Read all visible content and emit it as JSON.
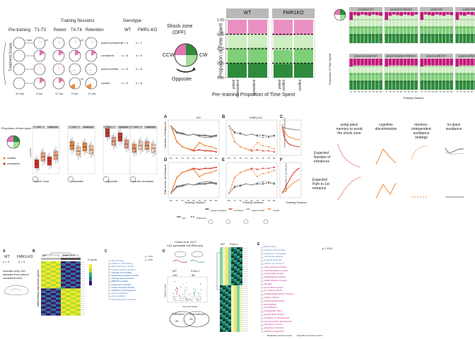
{
  "top_left": {
    "training_sessions": "Training Sessions",
    "genotype": "Genotype",
    "treatment_groups": "Treatment Groups",
    "stages": [
      "Pre-training",
      "T1-T3",
      "Retest",
      "T4-T6",
      "Retention"
    ],
    "genotype_cols": [
      "WT",
      "FMR1-KO"
    ],
    "groups": [
      {
        "name": "yoked-consistent",
        "wt": "n = 4",
        "ko": "n = 7"
      },
      {
        "name": "consistent",
        "wt": "n = 6",
        "ko": "n = 9"
      },
      {
        "name": "yoked-conflict",
        "wt": "n = 5",
        "ko": "n = 5"
      },
      {
        "name": "conflict",
        "wt": "n = 9",
        "ko": "n = 8"
      }
    ],
    "times": [
      "10 min",
      "2 hrs",
      "17 hrs",
      "2 hrs",
      "17 hrs"
    ],
    "small_labels": [
      "1 rpm",
      "x3",
      "x3",
      "x3"
    ]
  },
  "shock_zone": {
    "title": "Shock zone",
    "off": "(OFF)",
    "ccw": "CCW",
    "cw": "CW",
    "opposite": "Opposite"
  },
  "proportion_chart": {
    "panels": [
      "WT",
      "FMR1KO"
    ],
    "ylabel": "Proportion of Time Spent",
    "yticks": [
      "0.00",
      "0.25",
      "0.50",
      "0.75",
      "1.00"
    ],
    "categories": [
      "yoked",
      "consistent",
      "yoked",
      "conflict"
    ],
    "cat_lines": [
      [
        "yoked",
        "consistent"
      ],
      [
        "consistent"
      ],
      [
        "yoked",
        "conflict"
      ],
      [
        "conflict"
      ]
    ],
    "xtitle": "Pre−training Proportion of Time Spent",
    "colors": {
      "pink": "#ea8fc2",
      "light": "#cfeec3",
      "mid": "#7fcf79",
      "dark": "#2e8b3c"
    }
  },
  "chart_data": [
    {
      "type": "bar",
      "title": "",
      "ylabel": "Proportion of Time Spent",
      "xlabel": "Pre−training Proportion of Time Spent",
      "ylim": [
        0,
        1
      ],
      "panels": [
        "WT",
        "FMR1KO"
      ],
      "categories": [
        "yoked consistent",
        "consistent",
        "yoked conflict",
        "conflict"
      ],
      "series": [
        {
          "name": "",
          "values": [
            0.25,
            0.25,
            0.24,
            0.25
          ]
        },
        {
          "name": "",
          "values": [
            0.26,
            0.27,
            0.24,
            0.25
          ]
        },
        {
          "name": "",
          "values": [
            0.24,
            0.24,
            0.25,
            0.24
          ]
        },
        {
          "name": "",
          "values": [
            0.25,
            0.24,
            0.27,
            0.26
          ]
        }
      ]
    },
    {
      "type": "line",
      "title": "",
      "xlabel": "Training Session",
      "ylabel": "Number of Entrances",
      "categories": [
        "Pre",
        "T1",
        "T2",
        "T3",
        "Rt",
        "T4",
        "T5",
        "T6",
        "Rn"
      ],
      "series": [
        {
          "name": "yoked-consistent",
          "values": [
            27,
            21,
            20,
            18,
            19,
            18,
            18,
            17,
            18
          ]
        },
        {
          "name": "consistent",
          "values": [
            27,
            12,
            7,
            5,
            3,
            4,
            3,
            3,
            2
          ]
        },
        {
          "name": "yoked-conflict",
          "values": [
            27,
            20,
            19,
            18,
            19,
            17,
            16,
            16,
            17
          ]
        },
        {
          "name": "conflict",
          "values": [
            27,
            12,
            7,
            5,
            4,
            11,
            8,
            7,
            5
          ]
        }
      ]
    }
  ],
  "right_grid": {
    "header_rows": [
      [
        "consistent WT",
        "consistent FMR1KO",
        "conflict WT",
        "conflict FMR1KO"
      ],
      [
        "yoked-consistent WT",
        "yoked-consistent FMR1KO",
        "yoked-conflict WT",
        "yoked-conflict FMR1KO"
      ]
    ],
    "ylabel": "Proportion of Time Spent",
    "xlabel": "Training Session",
    "sessions": [
      "P",
      "T1",
      "T2",
      "T3",
      "Rt",
      "T4",
      "T5",
      "T6",
      "Rn"
    ]
  },
  "mid_left": {
    "legend_title": "Proportion of time spent",
    "legend_items": [
      "shock",
      "CCW",
      "conflict",
      "consistent"
    ],
    "panels": [
      {
        "title": "Shock Zone",
        "cols": [
          "WT",
          "FMR1KO"
        ]
      },
      {
        "title": "Clockwise",
        "cols": [
          "WT",
          "FMR1KO"
        ]
      },
      {
        "title": "Opposite",
        "cols": [
          "WT",
          "FMR1KO"
        ]
      },
      {
        "title": "Counter clockwise",
        "cols": [
          "WT",
          "FMR1KO"
        ]
      }
    ]
  },
  "mid_center": {
    "panel_labels": [
      "A",
      "B",
      "C",
      "D",
      "E",
      "F"
    ],
    "wt_label": "WT",
    "ko_label": "FMR1-KO",
    "ylabels": [
      "Number of Entrances",
      "Path to the 1st Entrance"
    ],
    "xlabel": "Training Session",
    "sessions": [
      "Pre",
      "T1",
      "T2",
      "T3",
      "Rt",
      "T4",
      "T5",
      "T6",
      "Rn"
    ],
    "c_ylabel": "Expected Number of Entrances",
    "f_ylabel": "Expected Path to 1st Entrance",
    "legend": [
      "yoked-consistent",
      "consistent",
      "yoked-conflict",
      "conflict"
    ],
    "legend2": [
      "WT",
      "FMR1-KO"
    ]
  },
  "mid_right": {
    "columns": [
      "using place memory to avoid the shock zone",
      "cognitive discrimination",
      "memory-independent avoidance strategy",
      "no place avoidance"
    ],
    "column_lines": [
      [
        "using place",
        "memory to avoid",
        "the shock zone"
      ],
      [
        "cognitive",
        "discrimination"
      ],
      [
        "memory-",
        "independent",
        "avoidance",
        "strategy"
      ],
      [
        "no place",
        "avoidance"
      ]
    ],
    "rows": [
      "Expected Number of entrances",
      "Expected Path to 1st entrance"
    ],
    "row_lines": [
      [
        "Expected",
        "Number of",
        "entrances"
      ],
      [
        "Expected",
        "Path to 1st",
        "entrance"
      ]
    ]
  },
  "bottom": {
    "panel_a": {
      "label": "A",
      "wt": "WT",
      "ko": "FMR1-KO",
      "n_wt": "n = 4",
      "n_ko": "n = 4",
      "note": "Includes only CA1 samples from yoked-consistent mice",
      "note_lines": [
        "Includes only CA1",
        "samples from yoked-",
        "consistent mice"
      ]
    },
    "panel_b": {
      "label": "B",
      "wt": "WT",
      "ko": "FMR1-KO",
      "zlabel": "Z score",
      "ylabel": "differentially expressed genes"
    },
    "panel_c": {
      "label": "C",
      "p1": "p < 0.01",
      "p2": "p < 0.05",
      "terms": [
        "RNA binding",
        "mRNA 3'-UTR binding",
        "ribosomal large subunit",
        "synaptic vesicle transport",
        "calcium ion binding",
        "glutamate receptor activity",
        "voltage-gated channel",
        "PSD-95 complex",
        "potassium channel",
        "cation channel activity",
        "dendrite morphogenesis",
        "neuron projection",
        "axon guidance",
        "neurotransmitter secretion"
      ]
    },
    "panel_d": {
      "label": "D",
      "cite": "Ceolin et al. 2017",
      "cite2": "CA1 pyramidal cell RNA-seq",
      "wt": "WT",
      "ko": "Fmr1-/-",
      "n_wt": "140",
      "n_ko": "96",
      "xlabel": "Log fold change",
      "ylabel": "-log10 p-value",
      "legend": [
        "Published",
        "Reproduced"
      ],
      "venn": [
        "Published",
        "Reproduced",
        "35",
        "15"
      ]
    },
    "panel_e": {
      "label": "E",
      "p": "p < 0.01",
      "footnote1": "Replicates previous result",
      "footnote2": "Opposite to previous result",
      "terms": [
        "RNA binding",
        "mRNA 3'-UTR binding",
        "regulation of translation",
        "microtubule binding",
        "synapse assembly",
        "calcium ion transport",
        "cation channel complex",
        "neurotransmitter receptor",
        "postsynaptic density",
        "glutamatergic synapse",
        "GABA receptor complex",
        "dendrite",
        "axon initial segment",
        "ion channel activity",
        "voltage-gated calcium channel",
        "sodium channel",
        "protein kinase activity",
        "actin binding",
        "cell adhesion",
        "extracellular matrix",
        "growth factor binding",
        "regulation of neurogenesis",
        "nervous system development",
        "learning or memory",
        "response to stimulus",
        "ribosome biogenesis"
      ]
    }
  }
}
